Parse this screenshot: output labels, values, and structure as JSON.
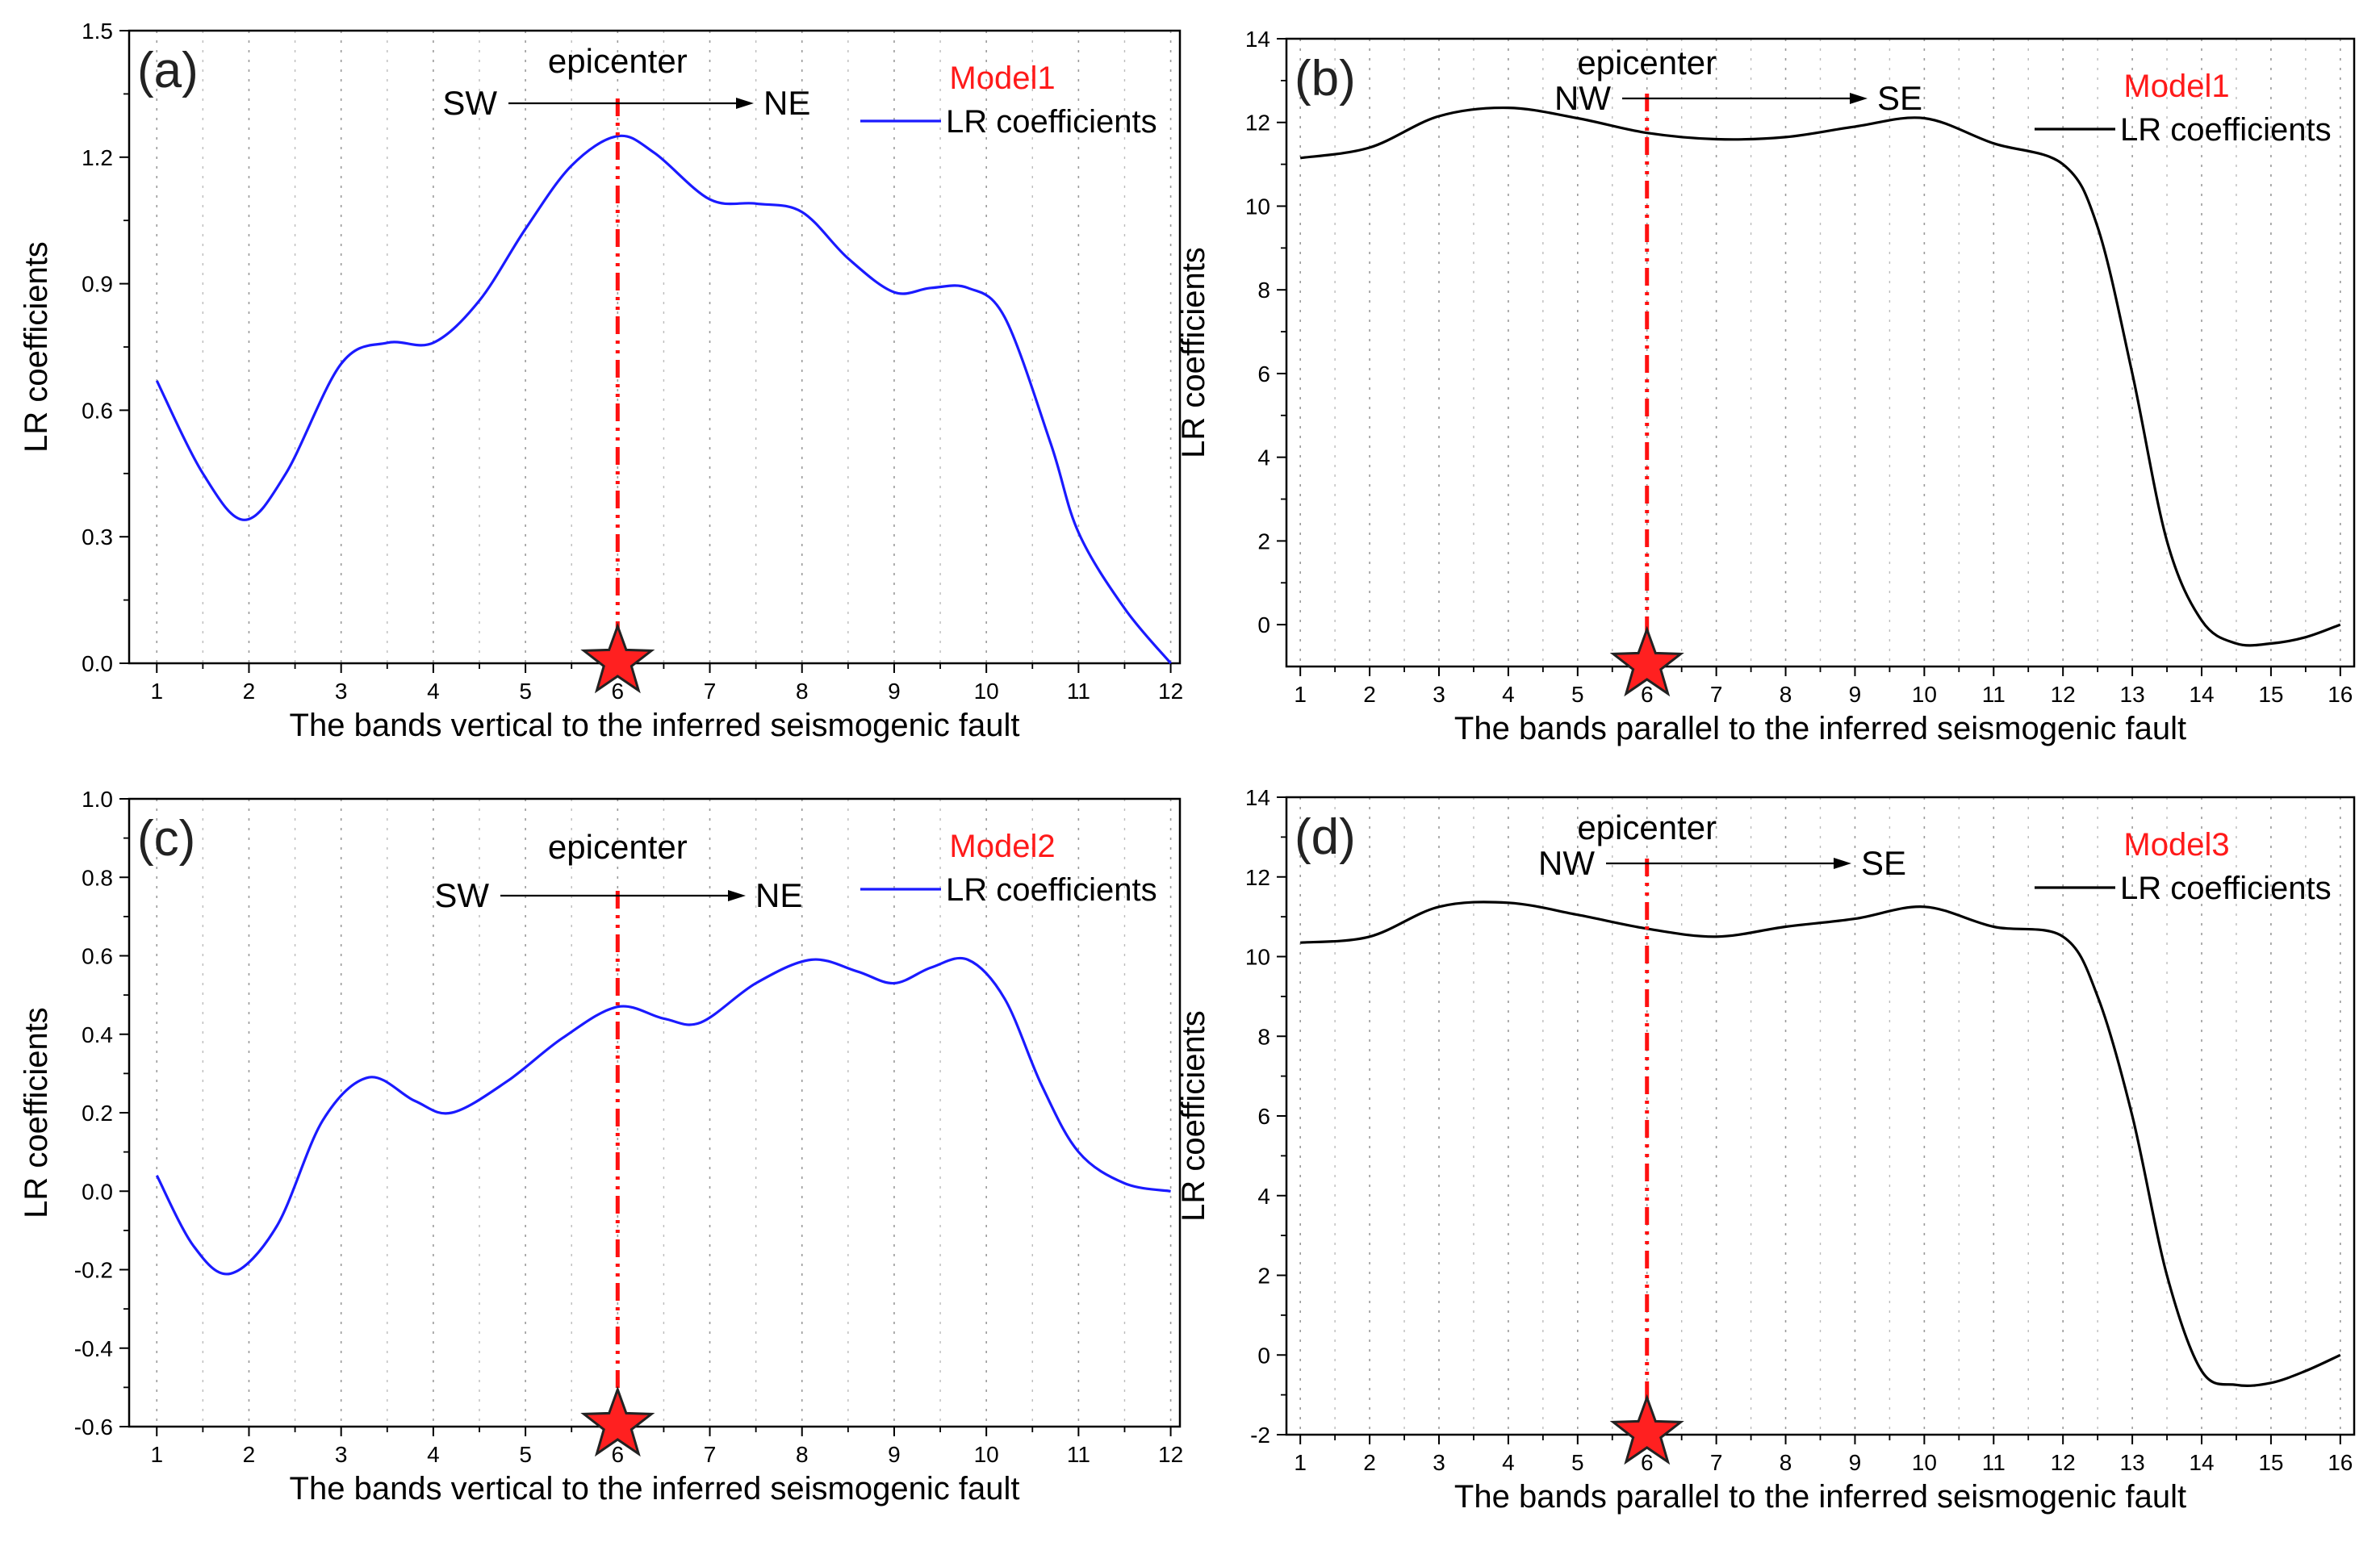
{
  "chart_data": [
    {
      "type": "line",
      "panel_label": "(a)",
      "model_label": "Model1",
      "legend": [
        {
          "name": "LR coefficients",
          "color": "#1a1aff"
        }
      ],
      "xlabel": "The bands vertical to the inferred seismogenic fault",
      "ylabel": "LR coefficients",
      "xlim": [
        0.7,
        12.1
      ],
      "ylim": [
        0.0,
        1.5
      ],
      "xticks": [
        "1",
        "2",
        "3",
        "4",
        "5",
        "6",
        "7",
        "8",
        "9",
        "10",
        "11",
        "12"
      ],
      "yticks": [
        "0.0",
        "0.3",
        "0.6",
        "0.9",
        "1.2",
        "1.5"
      ],
      "ytick_values": [
        0.0,
        0.3,
        0.6,
        0.9,
        1.2,
        1.5
      ],
      "grid": "vertical-dotted",
      "epicenter_x": 6,
      "annotation": {
        "title": "epicenter",
        "left": "SW",
        "right": "NE"
      },
      "series": [
        {
          "name": "LR coefficients",
          "color": "#1a1aff",
          "x": [
            1,
            1.5,
            1.95,
            2.4,
            3,
            3.5,
            4,
            4.5,
            5,
            5.5,
            6,
            6.4,
            7,
            7.5,
            8,
            8.5,
            9,
            9.4,
            9.8,
            10.2,
            10.7,
            11,
            11.5,
            12
          ],
          "y": [
            0.67,
            0.45,
            0.34,
            0.45,
            0.71,
            0.76,
            0.76,
            0.86,
            1.03,
            1.18,
            1.25,
            1.21,
            1.1,
            1.09,
            1.07,
            0.96,
            0.88,
            0.89,
            0.89,
            0.82,
            0.52,
            0.31,
            0.13,
            0.0
          ]
        }
      ]
    },
    {
      "type": "line",
      "panel_label": "(b)",
      "model_label": "Model1",
      "legend": [
        {
          "name": "LR coefficients",
          "color": "#000000"
        }
      ],
      "xlabel": "The bands parallel to the inferred seismogenic fault",
      "ylabel": "LR coefficients",
      "xlim": [
        0.8,
        16.2
      ],
      "ylim": [
        -1.0,
        14.0
      ],
      "xticks": [
        "1",
        "2",
        "3",
        "4",
        "5",
        "6",
        "7",
        "8",
        "9",
        "10",
        "11",
        "12",
        "13",
        "14",
        "15",
        "16"
      ],
      "yticks": [
        "0",
        "2",
        "4",
        "6",
        "8",
        "10",
        "12",
        "14"
      ],
      "ytick_values": [
        0,
        2,
        4,
        6,
        8,
        10,
        12,
        14
      ],
      "grid": "vertical-dotted",
      "epicenter_x": 6,
      "annotation": {
        "title": "epicenter",
        "left": "NW",
        "right": "SE"
      },
      "series": [
        {
          "name": "LR coefficients",
          "color": "#000000",
          "x": [
            1,
            2,
            3,
            4,
            5,
            6,
            7,
            8,
            9,
            10,
            11,
            12,
            12.5,
            13,
            13.5,
            14,
            14.5,
            15,
            15.5,
            16
          ],
          "y": [
            11.15,
            11.4,
            12.15,
            12.35,
            12.1,
            11.75,
            11.6,
            11.65,
            11.9,
            12.1,
            11.5,
            11.0,
            9.5,
            6.0,
            2.0,
            0.1,
            -0.45,
            -0.45,
            -0.3,
            0.0
          ]
        }
      ]
    },
    {
      "type": "line",
      "panel_label": "(c)",
      "model_label": "Model2",
      "legend": [
        {
          "name": "LR coefficients",
          "color": "#1a1aff"
        }
      ],
      "xlabel": "The bands vertical to the inferred seismogenic fault",
      "ylabel": "LR coefficients",
      "xlim": [
        0.7,
        12.1
      ],
      "ylim": [
        -0.6,
        1.0
      ],
      "xticks": [
        "1",
        "2",
        "3",
        "4",
        "5",
        "6",
        "7",
        "8",
        "9",
        "10",
        "11",
        "12"
      ],
      "yticks": [
        "-0.6",
        "-0.4",
        "-0.2",
        "0.0",
        "0.2",
        "0.4",
        "0.6",
        "0.8",
        "1.0"
      ],
      "ytick_values": [
        -0.6,
        -0.4,
        -0.2,
        0.0,
        0.2,
        0.4,
        0.6,
        0.8,
        1.0
      ],
      "grid": "vertical-dotted",
      "epicenter_x": 6,
      "annotation": {
        "title": "epicenter",
        "left": "SW",
        "right": "NE"
      },
      "series": [
        {
          "name": "LR coefficients",
          "color": "#1a1aff",
          "x": [
            1,
            1.4,
            1.8,
            2.3,
            2.8,
            3.3,
            3.8,
            4.2,
            4.8,
            5.4,
            6,
            6.5,
            6.9,
            7.5,
            8.1,
            8.6,
            9,
            9.4,
            9.8,
            10.2,
            10.6,
            11,
            11.5,
            12
          ],
          "y": [
            0.04,
            -0.14,
            -0.21,
            -0.09,
            0.18,
            0.29,
            0.23,
            0.2,
            0.28,
            0.39,
            0.47,
            0.44,
            0.43,
            0.53,
            0.59,
            0.56,
            0.53,
            0.57,
            0.59,
            0.49,
            0.27,
            0.1,
            0.02,
            0.0
          ]
        }
      ]
    },
    {
      "type": "line",
      "panel_label": "(d)",
      "model_label": "Model3",
      "legend": [
        {
          "name": "LR coefficients",
          "color": "#000000"
        }
      ],
      "xlabel": "The bands parallel to the inferred seismogenic fault",
      "ylabel": "LR coefficients",
      "xlim": [
        0.8,
        16.2
      ],
      "ylim": [
        -2.0,
        14.0
      ],
      "xticks": [
        "1",
        "2",
        "3",
        "4",
        "5",
        "6",
        "7",
        "8",
        "9",
        "10",
        "11",
        "12",
        "13",
        "14",
        "15",
        "16"
      ],
      "yticks": [
        "-2",
        "0",
        "2",
        "4",
        "6",
        "8",
        "10",
        "12",
        "14"
      ],
      "ytick_values": [
        -2,
        0,
        2,
        4,
        6,
        8,
        10,
        12,
        14
      ],
      "grid": "vertical-dotted",
      "epicenter_x": 6,
      "annotation": {
        "title": "epicenter",
        "left": "NW",
        "right": "SE"
      },
      "series": [
        {
          "name": "LR coefficients",
          "color": "#000000",
          "x": [
            1,
            2,
            3,
            4,
            5,
            6,
            7,
            8,
            9,
            10,
            11,
            12,
            12.5,
            13,
            13.5,
            14,
            14.5,
            15,
            15.5,
            16
          ],
          "y": [
            10.35,
            10.5,
            11.25,
            11.35,
            11.05,
            10.7,
            10.5,
            10.75,
            10.95,
            11.25,
            10.75,
            10.5,
            9.0,
            6.0,
            2.0,
            -0.4,
            -0.75,
            -0.7,
            -0.4,
            0.0
          ]
        }
      ]
    }
  ]
}
